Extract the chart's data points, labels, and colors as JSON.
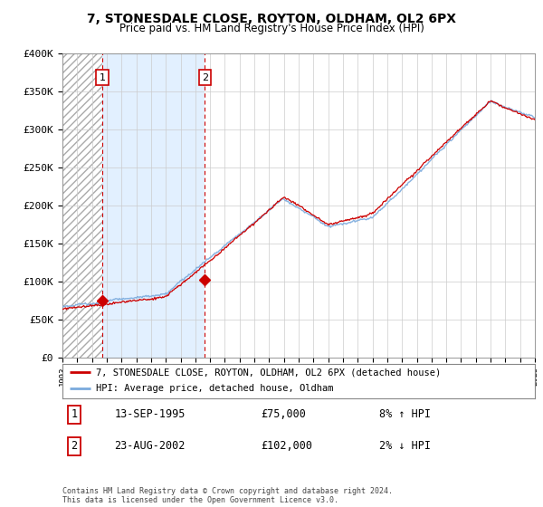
{
  "title": "7, STONESDALE CLOSE, ROYTON, OLDHAM, OL2 6PX",
  "subtitle": "Price paid vs. HM Land Registry's House Price Index (HPI)",
  "ylim": [
    0,
    400000
  ],
  "yticks": [
    0,
    50000,
    100000,
    150000,
    200000,
    250000,
    300000,
    350000,
    400000
  ],
  "ytick_labels": [
    "£0",
    "£50K",
    "£100K",
    "£150K",
    "£200K",
    "£250K",
    "£300K",
    "£350K",
    "£400K"
  ],
  "hpi_color": "#7aaadd",
  "price_color": "#cc0000",
  "sale1_date": 1995.71,
  "sale1_price": 75000,
  "sale2_date": 2002.65,
  "sale2_price": 102000,
  "legend_label1": "7, STONESDALE CLOSE, ROYTON, OLDHAM, OL2 6PX (detached house)",
  "legend_label2": "HPI: Average price, detached house, Oldham",
  "annotation1_date": "13-SEP-1995",
  "annotation1_price": "£75,000",
  "annotation1_hpi": "8% ↑ HPI",
  "annotation2_date": "23-AUG-2002",
  "annotation2_price": "£102,000",
  "annotation2_hpi": "2% ↓ HPI",
  "footer": "Contains HM Land Registry data © Crown copyright and database right 2024.\nThis data is licensed under the Open Government Licence v3.0.",
  "vline_color": "#cc0000",
  "xstart": 1993,
  "xend": 2025
}
